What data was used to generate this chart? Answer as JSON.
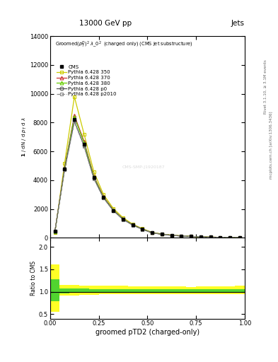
{
  "title_top": "13000 GeV pp",
  "title_right": "Jets",
  "plot_title": "Groomed$(p_T^D)^2$ $\\lambda\\_0^2$  (charged only) (CMS jet substructure)",
  "xlabel": "groomed pTD2 (charged-only)",
  "ylabel_ratio": "Ratio to CMS",
  "right_label_top": "Rivet 3.1.10, ≥ 3.1M events",
  "right_label_bot": "mcplots.cern.ch [arXiv:1306.3436]",
  "watermark": "CMS-SMP-J1920187",
  "xlim": [
    0.0,
    1.0
  ],
  "ylim_main": [
    0,
    14000
  ],
  "ylim_ratio": [
    0.4,
    2.2
  ],
  "yticks_main": [
    0,
    2000,
    4000,
    6000,
    8000,
    10000,
    12000,
    14000
  ],
  "ytick_labels_main": [
    "0",
    "2000",
    "4000",
    "6000",
    "8000",
    "10000",
    "12000",
    "14000"
  ],
  "x_data": [
    0.025,
    0.075,
    0.125,
    0.175,
    0.225,
    0.275,
    0.325,
    0.375,
    0.425,
    0.475,
    0.525,
    0.575,
    0.625,
    0.675,
    0.725,
    0.775,
    0.825,
    0.875,
    0.925,
    0.975
  ],
  "cms_y": [
    480,
    4800,
    8200,
    6500,
    4200,
    2800,
    1900,
    1300,
    900,
    600,
    350,
    250,
    180,
    130,
    100,
    70,
    50,
    35,
    25,
    15
  ],
  "p350_y": [
    380,
    5200,
    9800,
    7200,
    4600,
    3000,
    2050,
    1400,
    950,
    640,
    380,
    270,
    190,
    140,
    105,
    75,
    55,
    38,
    27,
    17
  ],
  "p370_y": [
    430,
    4900,
    8500,
    6700,
    4300,
    2850,
    1950,
    1320,
    910,
    610,
    360,
    255,
    182,
    133,
    100,
    71,
    51,
    36,
    25,
    16
  ],
  "p380_y": [
    410,
    4850,
    8400,
    6600,
    4250,
    2820,
    1930,
    1310,
    905,
    605,
    358,
    252,
    180,
    132,
    99,
    70,
    50,
    35,
    25,
    16
  ],
  "pp0_y": [
    460,
    4750,
    8100,
    6400,
    4150,
    2780,
    1900,
    1290,
    890,
    595,
    350,
    248,
    177,
    129,
    97,
    69,
    49,
    34,
    24,
    15
  ],
  "pp2010_y": [
    440,
    4720,
    8050,
    6350,
    4100,
    2750,
    1880,
    1270,
    875,
    585,
    345,
    244,
    175,
    127,
    96,
    68,
    49,
    34,
    23,
    15
  ],
  "color_350": "#cccc00",
  "color_370": "#cc3333",
  "color_380": "#66cc00",
  "color_p0": "#555555",
  "color_p2010": "#888888",
  "band_yellow_lo": [
    0.55,
    0.92,
    0.92,
    0.93,
    0.93,
    0.94,
    0.94,
    0.94,
    0.94,
    0.94,
    0.94,
    0.94,
    0.94,
    0.94,
    0.94,
    0.94,
    0.95,
    0.94,
    0.94,
    0.94
  ],
  "band_yellow_hi": [
    1.6,
    1.15,
    1.15,
    1.14,
    1.13,
    1.13,
    1.13,
    1.13,
    1.12,
    1.12,
    1.12,
    1.12,
    1.12,
    1.12,
    1.11,
    1.12,
    1.12,
    1.12,
    1.12,
    1.13
  ],
  "band_green_lo": [
    0.78,
    0.96,
    0.97,
    0.97,
    0.97,
    0.97,
    0.97,
    0.97,
    0.97,
    0.97,
    0.97,
    0.97,
    0.97,
    0.97,
    0.97,
    0.97,
    0.97,
    0.97,
    0.97,
    0.97
  ],
  "band_green_hi": [
    1.28,
    1.07,
    1.07,
    1.07,
    1.06,
    1.06,
    1.06,
    1.06,
    1.06,
    1.06,
    1.06,
    1.06,
    1.05,
    1.05,
    1.05,
    1.05,
    1.05,
    1.05,
    1.05,
    1.06
  ]
}
